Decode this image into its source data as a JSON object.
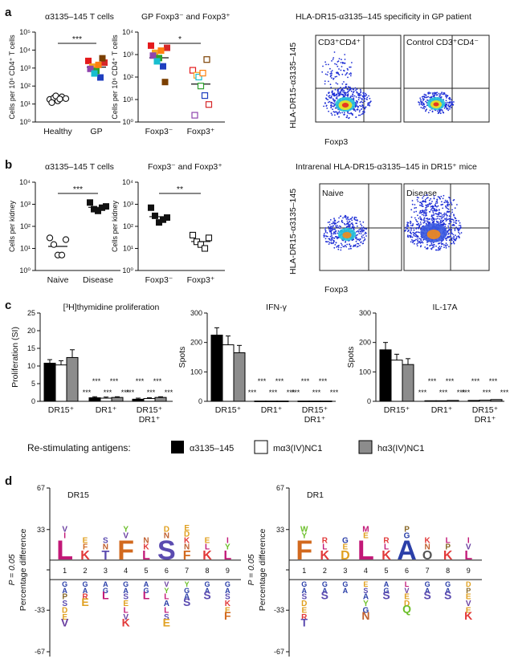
{
  "panels": {
    "a": "a",
    "b": "b",
    "c": "c",
    "d": "d",
    "a1_title": "α3135–145 T cells",
    "a2_title": "GP Foxp3⁻ and Foxp3⁺",
    "a3_title": "HLA-DR15-α3135–145 specificity in GP patient",
    "b1_title": "α3135–145 T cells",
    "b2_title": "Foxp3⁻ and Foxp3⁺",
    "b3_title": "Intrarenal HLA-DR15-α3135–145 in DR15⁺ mice",
    "flow_a_left": "CD3⁺CD4⁺",
    "flow_a_right": "Control CD3⁺CD4⁻",
    "flow_b_left": "Naive",
    "flow_b_right": "Disease",
    "flow_ylabel": "HLA-DR15-α3135–145",
    "flow_xlabel": "Foxp3",
    "legend_title": "Re-stimulating antigens:",
    "d_ylabel": "Percentage difference",
    "d_pval": "P = 0.05"
  },
  "colors": {
    "black": "#000000",
    "white": "#ffffff",
    "grey": "#8c8c8c",
    "flow_blue": "#1f2fd6"
  },
  "chart_data": [
    {
      "id": "a1",
      "type": "scatter",
      "ylabel": "Cells per 10⁶ CD4⁺ T cells",
      "yscale": "log",
      "ylim": [
        1,
        100000
      ],
      "yticks": [
        "10⁰",
        "10¹",
        "10²",
        "10³",
        "10⁴",
        "10⁵"
      ],
      "categories": [
        "Healthy",
        "GP"
      ],
      "series": [
        {
          "category": "Healthy",
          "values": [
            18,
            22,
            15,
            25,
            20,
            12,
            28,
            19
          ],
          "marker": "open-circle"
        },
        {
          "category": "GP",
          "values": [
            2500,
            1200,
            700,
            300,
            2000,
            900,
            500,
            1500,
            3500
          ],
          "marker": "colored-square"
        }
      ],
      "annotation": "***"
    },
    {
      "id": "a2",
      "type": "scatter",
      "ylabel": "Cells per 10⁶ CD4⁺ T cells",
      "yscale": "log",
      "ylim": [
        1,
        10000
      ],
      "yticks": [
        "10⁰",
        "10¹",
        "10²",
        "10³",
        "10⁴"
      ],
      "categories": [
        "Foxp3⁻",
        "Foxp3⁺"
      ],
      "series": [
        {
          "category": "Foxp3⁻",
          "values": [
            2500,
            1200,
            700,
            300,
            2000,
            900,
            500,
            1500,
            60
          ],
          "marker": "colored-square"
        },
        {
          "category": "Foxp3⁺",
          "values": [
            200,
            120,
            40,
            15,
            6,
            2,
            100,
            150,
            600
          ],
          "marker": "open-colored-square"
        }
      ],
      "annotation": "*"
    },
    {
      "id": "b1",
      "type": "scatter",
      "ylabel": "Cells per kidney",
      "yscale": "log",
      "ylim": [
        1,
        10000
      ],
      "yticks": [
        "10⁰",
        "10¹",
        "10²",
        "10³",
        "10⁴"
      ],
      "categories": [
        "Naive",
        "Disease"
      ],
      "series": [
        {
          "category": "Naive",
          "values": [
            30,
            15,
            5,
            5,
            25
          ],
          "marker": "open-circle"
        },
        {
          "category": "Disease",
          "values": [
            1200,
            600,
            500,
            700,
            800
          ],
          "marker": "filled-square"
        }
      ],
      "annotation": "***"
    },
    {
      "id": "b2",
      "type": "scatter",
      "ylabel": "Cells per kidney",
      "yscale": "log",
      "ylim": [
        1,
        10000
      ],
      "yticks": [
        "10⁰",
        "10¹",
        "10²",
        "10³",
        "10⁴"
      ],
      "categories": [
        "Foxp3⁻",
        "Foxp3⁺"
      ],
      "series": [
        {
          "category": "Foxp3⁻",
          "values": [
            700,
            300,
            150,
            200,
            250
          ],
          "marker": "filled-square"
        },
        {
          "category": "Foxp3⁺",
          "values": [
            40,
            20,
            15,
            10,
            30
          ],
          "marker": "open-square"
        }
      ],
      "annotation": "**"
    },
    {
      "id": "c1",
      "type": "bar",
      "title": "[³H]thymidine proliferation",
      "ylabel": "Proliferation (SI)",
      "ylim": [
        0,
        25
      ],
      "yticks": [
        "0",
        "5",
        "10",
        "15",
        "20",
        "25"
      ],
      "categories": [
        "DR15⁺",
        "DR1⁺",
        "DR15⁺ DR1⁺"
      ],
      "series": [
        {
          "name": "α3135–145",
          "values": [
            10.8,
            1.0,
            0.6
          ]
        },
        {
          "name": "mα3(IV)NC1",
          "values": [
            10.3,
            0.9,
            0.8
          ]
        },
        {
          "name": "hα3(IV)NC1",
          "values": [
            12.4,
            1.1,
            1.1
          ]
        }
      ],
      "errors": [
        [
          1.0,
          0.3,
          0.3
        ],
        [
          1.2,
          0.3,
          0.2
        ],
        [
          2.2,
          0.2,
          0.2
        ]
      ],
      "annotations": [
        [
          "***",
          "***",
          "***"
        ],
        [
          "***",
          "***",
          "***"
        ]
      ]
    },
    {
      "id": "c2",
      "type": "bar",
      "title": "IFN-γ",
      "ylabel": "Spots",
      "ylim": [
        0,
        300
      ],
      "yticks": [
        "0",
        "100",
        "200",
        "300"
      ],
      "categories": [
        "DR15⁺",
        "DR1⁺",
        "DR15⁺ DR1⁺"
      ],
      "series": [
        {
          "name": "α3135–145",
          "values": [
            225,
            1,
            1
          ]
        },
        {
          "name": "mα3(IV)NC1",
          "values": [
            192,
            1,
            1
          ]
        },
        {
          "name": "hα3(IV)NC1",
          "values": [
            165,
            1,
            1
          ]
        }
      ],
      "errors": [
        [
          25,
          0,
          0
        ],
        [
          30,
          0,
          0
        ],
        [
          25,
          0,
          0
        ]
      ],
      "annotations": [
        [
          "***",
          "***",
          "***"
        ],
        [
          "***",
          "***",
          "***"
        ]
      ]
    },
    {
      "id": "c3",
      "type": "bar",
      "title": "IL-17A",
      "ylabel": "Spots",
      "ylim": [
        0,
        300
      ],
      "yticks": [
        "0",
        "100",
        "200",
        "300"
      ],
      "categories": [
        "DR15⁺",
        "DR1⁺",
        "DR15⁺ DR1⁺"
      ],
      "series": [
        {
          "name": "α3135–145",
          "values": [
            175,
            2,
            3
          ]
        },
        {
          "name": "mα3(IV)NC1",
          "values": [
            140,
            2,
            4
          ]
        },
        {
          "name": "hα3(IV)NC1",
          "values": [
            125,
            3,
            6
          ]
        }
      ],
      "errors": [
        [
          25,
          0,
          0
        ],
        [
          20,
          0,
          0
        ],
        [
          20,
          0,
          0
        ]
      ],
      "annotations": [
        [
          "***",
          "***",
          "***"
        ],
        [
          "***",
          "***",
          "***"
        ]
      ]
    },
    {
      "id": "d1",
      "type": "logo",
      "title": "DR15",
      "ylabel": "Percentage difference",
      "ylim": [
        -67,
        67
      ],
      "yticks": [
        "67",
        "33",
        "0",
        "-33",
        "-67"
      ],
      "x": [
        "1",
        "2",
        "3",
        "4",
        "5",
        "6",
        "7",
        "8",
        "9"
      ],
      "top_letters": [
        "LIV",
        "KFE",
        "TNS",
        "FVY",
        "LKN",
        "SND",
        "FNKDE",
        "KLE",
        "LYI"
      ],
      "bottom_letters": [
        "GAPSDEV",
        "GARE",
        "AGL",
        "GASELVK",
        "AGL",
        "VYLALSE",
        "YGAS",
        "GAS",
        "GASKEF"
      ]
    },
    {
      "id": "d2",
      "type": "logo",
      "title": "DR1",
      "ylabel": "Percentage difference",
      "ylim": [
        -67,
        67
      ],
      "yticks": [
        "67",
        "33",
        "0",
        "-33",
        "-67"
      ],
      "x": [
        "1",
        "2",
        "3",
        "4",
        "5",
        "6",
        "7",
        "8",
        "9"
      ],
      "top_letters": [
        "FYW",
        "KLR",
        "DEG",
        "LEM",
        "KLR",
        "AGP",
        "ONK",
        "KPL",
        "LVI"
      ],
      "bottom_letters": [
        "GASDERT",
        "GAS",
        "GA",
        "ESAYGN",
        "AGS",
        "LVEDQ",
        "GAS",
        "GAS",
        "DPEVEK"
      ]
    }
  ]
}
